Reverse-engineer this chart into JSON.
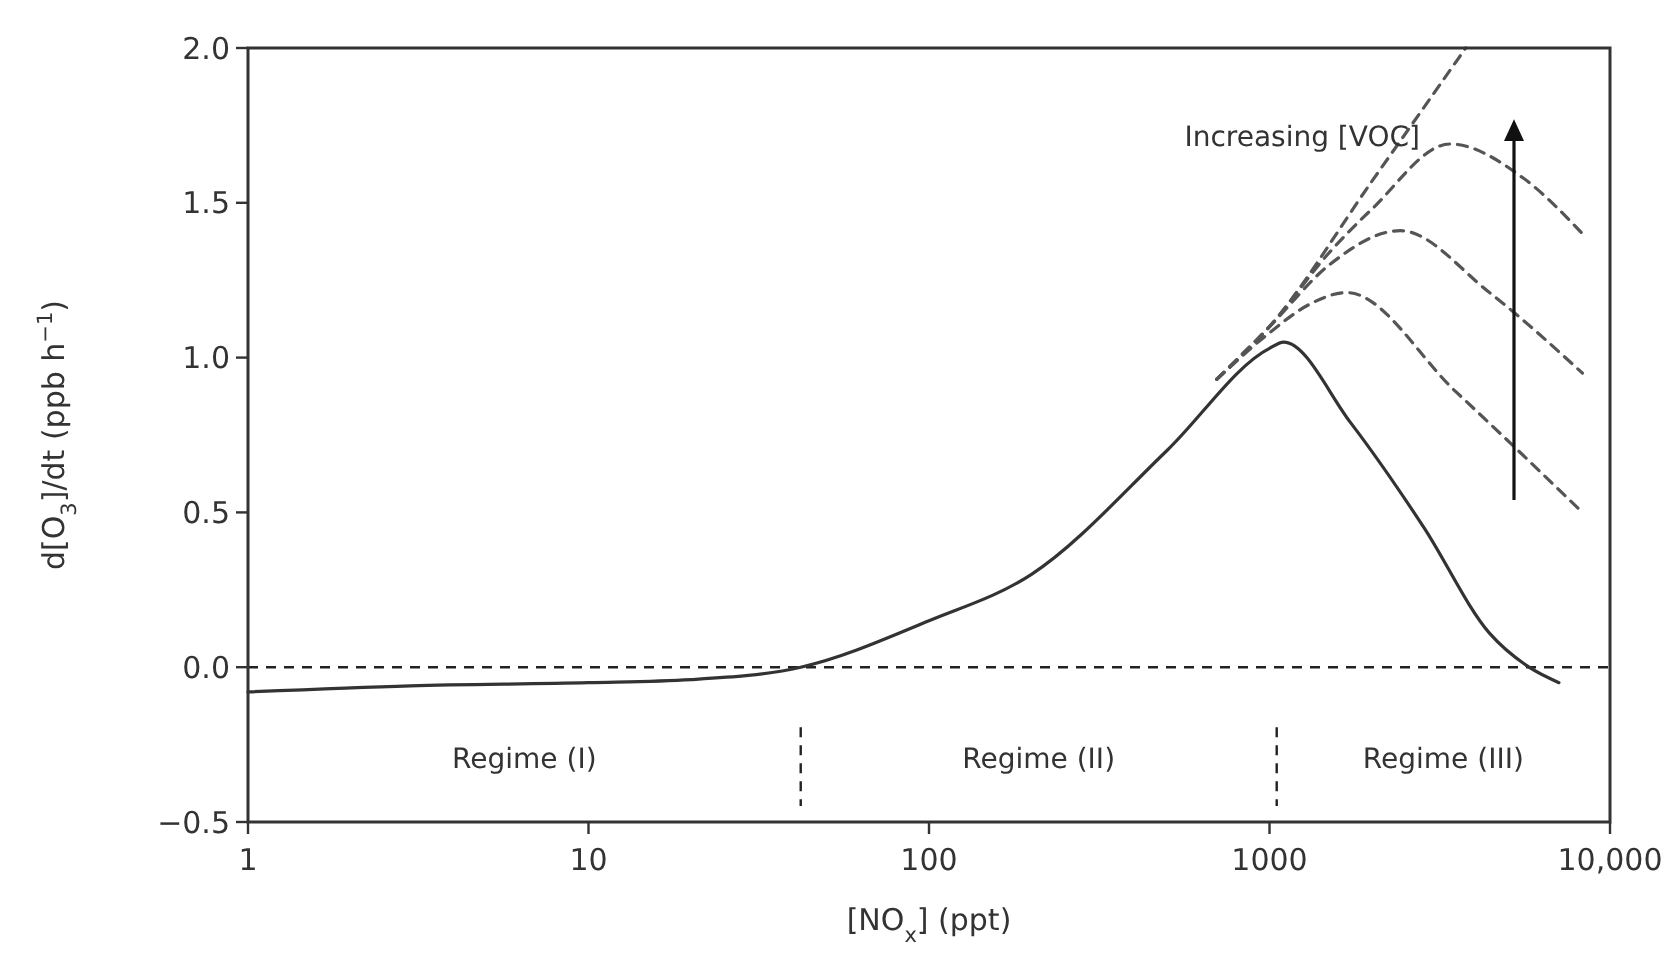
{
  "chart_data": {
    "type": "line",
    "xlabel": "[NO$_{x}$] (ppt)",
    "ylabel": "d[O$_{3}$]/dt (ppb h$^{−1}$)",
    "log": "x",
    "xlim": [
      1,
      10000
    ],
    "ylim": [
      -0.5,
      2.0
    ],
    "xticks": [
      1,
      10,
      100,
      1000,
      {
        "value": 10000,
        "label": "10,000"
      }
    ],
    "yticks": [
      {
        "value": -0.5,
        "label": "−0.5"
      },
      {
        "value": 0,
        "label": "0.0"
      },
      {
        "value": 0.5,
        "label": "0.5"
      },
      {
        "value": 1,
        "label": "1.0"
      },
      {
        "value": 1.5,
        "label": "1.5"
      },
      {
        "value": 2,
        "label": "2.0"
      }
    ],
    "grid": false,
    "series": [
      {
        "color": "#333333",
        "line_style": "solid",
        "x": [
          1,
          3,
          10,
          20,
          42,
          100,
          200,
          500,
          1000,
          1100,
          1730,
          2845,
          4425,
          5785,
          7080
        ],
        "values": [
          -0.08,
          -0.06,
          -0.05,
          -0.04,
          0,
          0.15,
          0.3,
          0.7,
          1.03,
          1.05,
          0.79,
          0.45,
          0.11,
          0,
          -0.05
        ]
      },
      {
        "color": "#555555",
        "line_style": "dashed",
        "x": [
          700,
          1000,
          2000,
          3770
        ],
        "values": [
          0.93,
          1.1,
          1.57,
          2.0
        ]
      },
      {
        "color": "#555555",
        "line_style": "dashed",
        "x": [
          700,
          1000,
          1500,
          2000,
          3388,
          5560,
          8300
        ],
        "values": [
          0.93,
          1.1,
          1.34,
          1.48,
          1.69,
          1.58,
          1.4
        ]
      },
      {
        "color": "#555555",
        "line_style": "dashed",
        "x": [
          700,
          1000,
          1500,
          2420,
          4425,
          8300
        ],
        "values": [
          0.93,
          1.1,
          1.3,
          1.41,
          1.21,
          0.95
        ]
      },
      {
        "color": "#555555",
        "line_style": "dashed",
        "x": [
          700,
          1000,
          1300,
          1686,
          3524,
          8300
        ],
        "values": [
          0.93,
          1.08,
          1.17,
          1.21,
          0.89,
          0.5
        ]
      }
    ],
    "ref_lines": [
      {
        "axis": "y",
        "value": 0,
        "line_style": "dashed",
        "color": "#222222"
      },
      {
        "axis": "x",
        "value": 42,
        "line_style": "dashed",
        "color": "#222222"
      },
      {
        "axis": "x",
        "value": 1050,
        "line_style": "dashed",
        "color": "#222222"
      }
    ],
    "annotations": [
      "Regime (I)",
      "Regime (II)",
      "Regime (III)",
      "Increasing [VOC]"
    ]
  }
}
